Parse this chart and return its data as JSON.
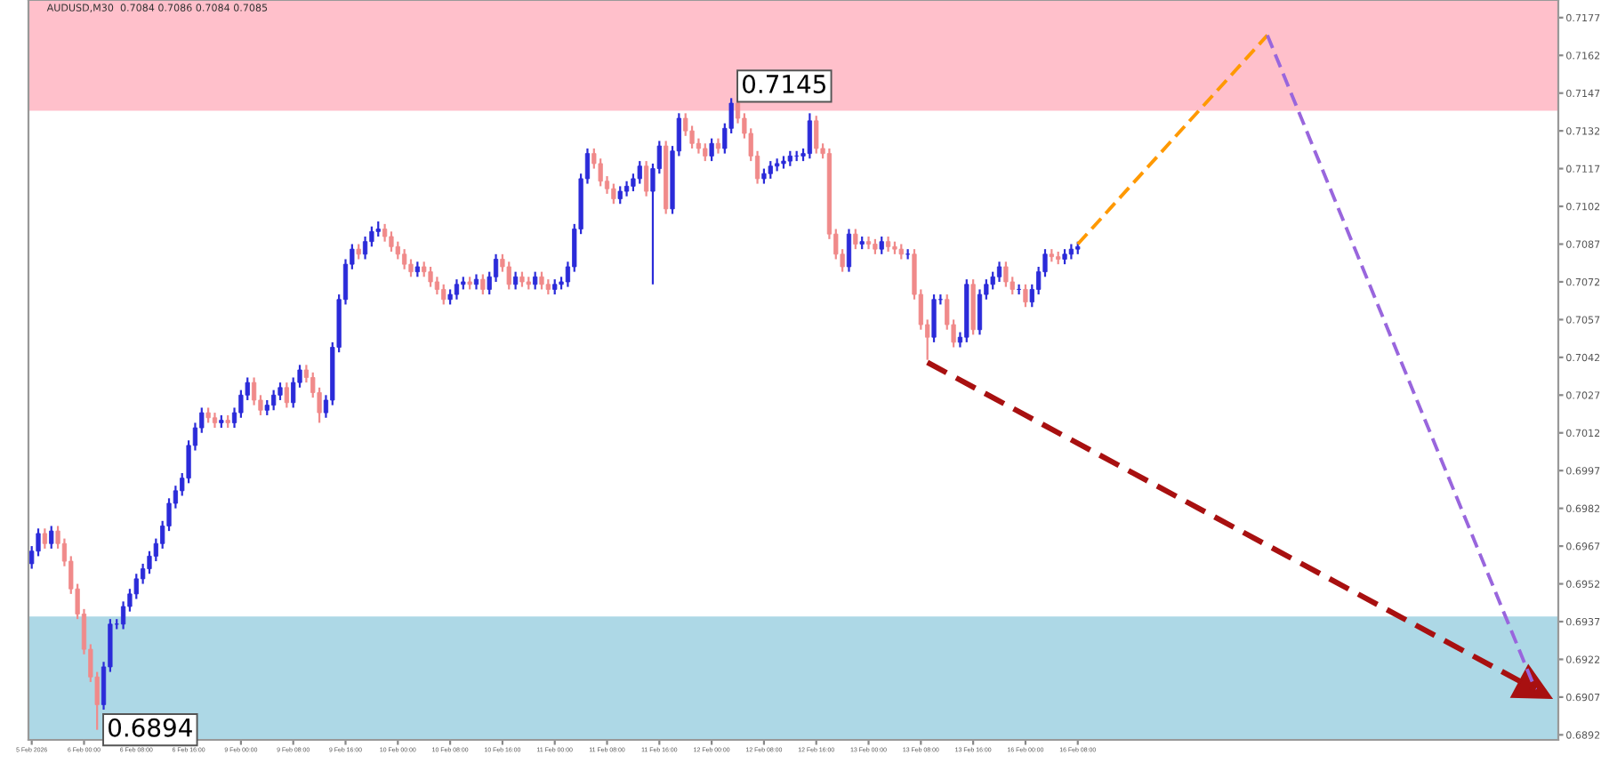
{
  "chart_data": {
    "type": "candlestick",
    "title": "AUDUSD,M30  0.7084 0.7086 0.7084 0.7085",
    "categories": [
      "5 Feb 2026",
      null,
      null,
      null,
      null,
      null,
      null,
      null,
      "6 Feb 00:00",
      null,
      null,
      null,
      null,
      null,
      null,
      null,
      "6 Feb 08:00",
      null,
      null,
      null,
      null,
      null,
      null,
      null,
      "6 Feb 16:00",
      null,
      null,
      null,
      null,
      null,
      null,
      null,
      "9 Feb 00:00",
      null,
      null,
      null,
      null,
      null,
      null,
      null,
      "9 Feb 08:00",
      null,
      null,
      null,
      null,
      null,
      null,
      null,
      "9 Feb 16:00",
      null,
      null,
      null,
      null,
      null,
      null,
      null,
      "10 Feb 00:00",
      null,
      null,
      null,
      null,
      null,
      null,
      null,
      "10 Feb 08:00",
      null,
      null,
      null,
      null,
      null,
      null,
      null,
      "10 Feb 16:00",
      null,
      null,
      null,
      null,
      null,
      null,
      null,
      "11 Feb 00:00",
      null,
      null,
      null,
      null,
      null,
      null,
      null,
      "11 Feb 08:00",
      null,
      null,
      null,
      null,
      null,
      null,
      null,
      "11 Feb 16:00",
      null,
      null,
      null,
      null,
      null,
      null,
      null,
      "12 Feb 00:00",
      null,
      null,
      null,
      null,
      null,
      null,
      null,
      "12 Feb 08:00",
      null,
      null,
      null,
      null,
      null,
      null,
      null,
      "12 Feb 16:00",
      null,
      null,
      null,
      null,
      null,
      null,
      null,
      "13 Feb 00:00",
      null,
      null,
      null,
      null,
      null,
      null,
      null,
      "13 Feb 08:00",
      null,
      null,
      null,
      null,
      null,
      null,
      null,
      "13 Feb 16:00",
      null,
      null,
      null,
      null,
      null,
      null,
      null,
      "16 Feb 00:00",
      null,
      null,
      null,
      null,
      null,
      null,
      null,
      "16 Feb 08:00",
      null,
      null,
      null,
      null,
      null,
      null,
      null,
      null,
      null,
      null,
      null,
      null,
      null,
      null,
      null,
      null,
      null,
      null,
      null,
      null,
      null,
      null,
      null,
      null,
      null,
      null,
      null,
      null,
      null,
      null,
      null,
      null,
      null,
      null,
      null,
      null,
      null,
      null,
      null,
      null,
      null,
      null,
      null,
      null,
      null,
      null,
      null,
      null,
      null,
      null,
      null,
      null,
      null,
      null,
      null,
      null,
      null,
      null,
      null,
      null,
      null,
      null,
      null,
      null,
      null,
      null,
      null,
      null,
      null,
      null,
      null,
      null,
      null
    ],
    "ohlc": [
      [
        0.696,
        0.6967,
        0.6958,
        0.6965
      ],
      [
        0.6965,
        0.6974,
        0.6963,
        0.6972
      ],
      [
        0.6972,
        0.6974,
        0.6966,
        0.6968
      ],
      [
        0.6968,
        0.6975,
        0.6966,
        0.6973
      ],
      [
        0.6973,
        0.6975,
        0.6966,
        0.6968
      ],
      [
        0.6968,
        0.697,
        0.6959,
        0.6961
      ],
      [
        0.6961,
        0.6963,
        0.6948,
        0.695
      ],
      [
        0.695,
        0.6952,
        0.6938,
        0.694
      ],
      [
        0.694,
        0.6942,
        0.6924,
        0.6926
      ],
      [
        0.6926,
        0.6928,
        0.6913,
        0.6915
      ],
      [
        0.6915,
        0.6917,
        0.6894,
        0.6904
      ],
      [
        0.6904,
        0.6921,
        0.6902,
        0.6919
      ],
      [
        0.6919,
        0.6938,
        0.6917,
        0.6936
      ],
      [
        0.6936,
        0.6938,
        0.6934,
        0.6936
      ],
      [
        0.6936,
        0.6945,
        0.6934,
        0.6943
      ],
      [
        0.6943,
        0.695,
        0.6941,
        0.6948
      ],
      [
        0.6948,
        0.6956,
        0.6946,
        0.6954
      ],
      [
        0.6954,
        0.696,
        0.6952,
        0.6958
      ],
      [
        0.6958,
        0.6965,
        0.6956,
        0.6963
      ],
      [
        0.6963,
        0.697,
        0.6961,
        0.6968
      ],
      [
        0.6968,
        0.6977,
        0.6966,
        0.6975
      ],
      [
        0.6975,
        0.6986,
        0.6973,
        0.6984
      ],
      [
        0.6984,
        0.6991,
        0.6982,
        0.6989
      ],
      [
        0.6989,
        0.6996,
        0.6987,
        0.6994
      ],
      [
        0.6994,
        0.7009,
        0.6992,
        0.7007
      ],
      [
        0.7007,
        0.7016,
        0.7005,
        0.7014
      ],
      [
        0.7014,
        0.7022,
        0.7012,
        0.702
      ],
      [
        0.702,
        0.7022,
        0.7016,
        0.7018
      ],
      [
        0.7018,
        0.702,
        0.7014,
        0.7016
      ],
      [
        0.7016,
        0.7019,
        0.7014,
        0.7017
      ],
      [
        0.7017,
        0.7019,
        0.7014,
        0.7016
      ],
      [
        0.7016,
        0.7022,
        0.7014,
        0.702
      ],
      [
        0.702,
        0.7029,
        0.7018,
        0.7027
      ],
      [
        0.7027,
        0.7034,
        0.7025,
        0.7032
      ],
      [
        0.7032,
        0.7034,
        0.7023,
        0.7025
      ],
      [
        0.7025,
        0.7027,
        0.7019,
        0.7021
      ],
      [
        0.7021,
        0.7025,
        0.7019,
        0.7023
      ],
      [
        0.7023,
        0.7029,
        0.7021,
        0.7027
      ],
      [
        0.7027,
        0.7032,
        0.7025,
        0.703
      ],
      [
        0.703,
        0.7032,
        0.7022,
        0.7024
      ],
      [
        0.7024,
        0.7034,
        0.7022,
        0.7032
      ],
      [
        0.7032,
        0.7039,
        0.703,
        0.7037
      ],
      [
        0.7037,
        0.7039,
        0.7032,
        0.7034
      ],
      [
        0.7034,
        0.7036,
        0.7026,
        0.7028
      ],
      [
        0.7028,
        0.703,
        0.7016,
        0.702
      ],
      [
        0.702,
        0.7027,
        0.7018,
        0.7025
      ],
      [
        0.7025,
        0.7048,
        0.7023,
        0.7046
      ],
      [
        0.7046,
        0.7067,
        0.7044,
        0.7065
      ],
      [
        0.7065,
        0.7081,
        0.7063,
        0.7079
      ],
      [
        0.7079,
        0.7087,
        0.7077,
        0.7085
      ],
      [
        0.7085,
        0.7087,
        0.7081,
        0.7083
      ],
      [
        0.7083,
        0.709,
        0.7081,
        0.7088
      ],
      [
        0.7088,
        0.7094,
        0.7086,
        0.7092
      ],
      [
        0.7092,
        0.7096,
        0.709,
        0.7093
      ],
      [
        0.7093,
        0.7095,
        0.7088,
        0.709
      ],
      [
        0.709,
        0.7092,
        0.7084,
        0.7086
      ],
      [
        0.7086,
        0.7088,
        0.7081,
        0.7083
      ],
      [
        0.7083,
        0.7085,
        0.7077,
        0.7079
      ],
      [
        0.7079,
        0.7081,
        0.7074,
        0.7076
      ],
      [
        0.7076,
        0.708,
        0.7074,
        0.7078
      ],
      [
        0.7078,
        0.708,
        0.7074,
        0.7076
      ],
      [
        0.7076,
        0.7078,
        0.707,
        0.7072
      ],
      [
        0.7072,
        0.7074,
        0.7067,
        0.7069
      ],
      [
        0.7069,
        0.7071,
        0.7063,
        0.7065
      ],
      [
        0.7065,
        0.7069,
        0.7063,
        0.7067
      ],
      [
        0.7067,
        0.7073,
        0.7065,
        0.7071
      ],
      [
        0.7071,
        0.7074,
        0.7069,
        0.7072
      ],
      [
        0.7072,
        0.7074,
        0.7069,
        0.7071
      ],
      [
        0.7071,
        0.7075,
        0.7069,
        0.7073
      ],
      [
        0.7073,
        0.7075,
        0.7067,
        0.7069
      ],
      [
        0.7069,
        0.7076,
        0.7067,
        0.7074
      ],
      [
        0.7074,
        0.7083,
        0.7072,
        0.7081
      ],
      [
        0.7081,
        0.7083,
        0.7076,
        0.7078
      ],
      [
        0.7078,
        0.708,
        0.7069,
        0.7071
      ],
      [
        0.7071,
        0.7076,
        0.7069,
        0.7074
      ],
      [
        0.7074,
        0.7076,
        0.707,
        0.7072
      ],
      [
        0.7072,
        0.7074,
        0.7069,
        0.7071
      ],
      [
        0.7071,
        0.7076,
        0.7069,
        0.7074
      ],
      [
        0.7074,
        0.7076,
        0.7069,
        0.7071
      ],
      [
        0.7071,
        0.7073,
        0.7067,
        0.7069
      ],
      [
        0.7069,
        0.7073,
        0.7067,
        0.7071
      ],
      [
        0.7071,
        0.7074,
        0.7069,
        0.7072
      ],
      [
        0.7072,
        0.708,
        0.707,
        0.7078
      ],
      [
        0.7078,
        0.7095,
        0.7076,
        0.7093
      ],
      [
        0.7093,
        0.7115,
        0.7091,
        0.7113
      ],
      [
        0.7113,
        0.7125,
        0.7111,
        0.7123
      ],
      [
        0.7123,
        0.7125,
        0.7117,
        0.7119
      ],
      [
        0.7119,
        0.7121,
        0.711,
        0.7112
      ],
      [
        0.7112,
        0.7114,
        0.7107,
        0.7109
      ],
      [
        0.7109,
        0.7111,
        0.7103,
        0.7105
      ],
      [
        0.7105,
        0.711,
        0.7103,
        0.7108
      ],
      [
        0.7108,
        0.7112,
        0.7106,
        0.711
      ],
      [
        0.711,
        0.7115,
        0.7108,
        0.7113
      ],
      [
        0.7113,
        0.712,
        0.7111,
        0.7118
      ],
      [
        0.7118,
        0.712,
        0.7106,
        0.7108
      ],
      [
        0.7108,
        0.7119,
        0.7071,
        0.7117
      ],
      [
        0.7117,
        0.7128,
        0.7115,
        0.7126
      ],
      [
        0.7126,
        0.7128,
        0.7099,
        0.7101
      ],
      [
        0.7101,
        0.7126,
        0.7099,
        0.7124
      ],
      [
        0.7124,
        0.7139,
        0.7122,
        0.7137
      ],
      [
        0.7137,
        0.7139,
        0.713,
        0.7132
      ],
      [
        0.7132,
        0.7134,
        0.7125,
        0.7127
      ],
      [
        0.7127,
        0.7129,
        0.7123,
        0.7125
      ],
      [
        0.7125,
        0.7127,
        0.712,
        0.7122
      ],
      [
        0.7122,
        0.7129,
        0.712,
        0.7127
      ],
      [
        0.7127,
        0.7129,
        0.7123,
        0.7125
      ],
      [
        0.7125,
        0.7135,
        0.7123,
        0.7133
      ],
      [
        0.7133,
        0.7145,
        0.7131,
        0.7143
      ],
      [
        0.7143,
        0.7144,
        0.7135,
        0.7137
      ],
      [
        0.7137,
        0.7139,
        0.7129,
        0.7131
      ],
      [
        0.7131,
        0.7133,
        0.712,
        0.7122
      ],
      [
        0.7122,
        0.7124,
        0.7111,
        0.7113
      ],
      [
        0.7113,
        0.7117,
        0.7111,
        0.7115
      ],
      [
        0.7115,
        0.712,
        0.7113,
        0.7118
      ],
      [
        0.7118,
        0.7121,
        0.7116,
        0.7119
      ],
      [
        0.7119,
        0.7122,
        0.7117,
        0.712
      ],
      [
        0.712,
        0.7124,
        0.7118,
        0.7122
      ],
      [
        0.7122,
        0.7124,
        0.712,
        0.7122
      ],
      [
        0.7122,
        0.7125,
        0.712,
        0.7123
      ],
      [
        0.7123,
        0.7139,
        0.7121,
        0.7136
      ],
      [
        0.7136,
        0.7138,
        0.7123,
        0.7125
      ],
      [
        0.7125,
        0.7127,
        0.7121,
        0.7123
      ],
      [
        0.7123,
        0.7125,
        0.7089,
        0.7091
      ],
      [
        0.7091,
        0.7093,
        0.7081,
        0.7083
      ],
      [
        0.7083,
        0.7085,
        0.7076,
        0.7078
      ],
      [
        0.7078,
        0.7093,
        0.7076,
        0.7091
      ],
      [
        0.7091,
        0.7093,
        0.7085,
        0.7087
      ],
      [
        0.7087,
        0.709,
        0.7085,
        0.7088
      ],
      [
        0.7088,
        0.709,
        0.7085,
        0.7087
      ],
      [
        0.7087,
        0.7089,
        0.7083,
        0.7085
      ],
      [
        0.7085,
        0.709,
        0.7083,
        0.7088
      ],
      [
        0.7088,
        0.709,
        0.7084,
        0.7086
      ],
      [
        0.7086,
        0.7088,
        0.7083,
        0.7085
      ],
      [
        0.7085,
        0.7087,
        0.7081,
        0.7083
      ],
      [
        0.7083,
        0.7085,
        0.7081,
        0.7083
      ],
      [
        0.7083,
        0.7085,
        0.7065,
        0.7067
      ],
      [
        0.7067,
        0.7069,
        0.7053,
        0.7055
      ],
      [
        0.7055,
        0.7057,
        0.7041,
        0.705
      ],
      [
        0.705,
        0.7067,
        0.7048,
        0.7065
      ],
      [
        0.7065,
        0.7067,
        0.7063,
        0.7065
      ],
      [
        0.7065,
        0.7067,
        0.7053,
        0.7055
      ],
      [
        0.7055,
        0.7057,
        0.7046,
        0.7048
      ],
      [
        0.7048,
        0.7052,
        0.7046,
        0.705
      ],
      [
        0.705,
        0.7073,
        0.7048,
        0.7071
      ],
      [
        0.7071,
        0.7073,
        0.7051,
        0.7053
      ],
      [
        0.7053,
        0.7069,
        0.7051,
        0.7067
      ],
      [
        0.7067,
        0.7073,
        0.7065,
        0.7071
      ],
      [
        0.7071,
        0.7076,
        0.7069,
        0.7074
      ],
      [
        0.7074,
        0.708,
        0.7072,
        0.7078
      ],
      [
        0.7078,
        0.708,
        0.707,
        0.7072
      ],
      [
        0.7072,
        0.7074,
        0.7067,
        0.7069
      ],
      [
        0.7069,
        0.7071,
        0.7067,
        0.7069
      ],
      [
        0.7069,
        0.7071,
        0.7062,
        0.7064
      ],
      [
        0.7064,
        0.7071,
        0.7062,
        0.7069
      ],
      [
        0.7069,
        0.7078,
        0.7067,
        0.7076
      ],
      [
        0.7076,
        0.7085,
        0.7074,
        0.7083
      ],
      [
        0.7083,
        0.7085,
        0.708,
        0.7082
      ],
      [
        0.7082,
        0.7084,
        0.7079,
        0.7081
      ],
      [
        0.7081,
        0.7085,
        0.7079,
        0.7083
      ],
      [
        0.7083,
        0.7087,
        0.7081,
        0.7085
      ],
      [
        0.7085,
        0.7088,
        0.7083,
        0.7086
      ],
      null,
      null,
      null,
      null,
      null,
      null,
      null,
      null,
      null,
      null,
      null,
      null,
      null,
      null,
      null,
      null,
      null,
      null,
      null,
      null,
      null,
      null,
      null,
      null,
      null,
      null,
      null,
      null,
      null,
      null,
      null,
      null,
      null,
      null,
      null,
      null,
      null,
      null,
      null,
      null,
      null,
      null,
      null,
      null,
      null,
      null,
      null,
      null,
      null,
      null,
      null,
      null,
      null,
      null,
      null,
      null,
      null,
      null,
      null,
      null,
      null,
      null,
      null,
      null,
      null,
      null,
      null,
      null,
      null,
      null,
      null,
      null,
      null
    ],
    "series": [
      {
        "type": "line",
        "color": "#ff9900",
        "line_style": "dashed",
        "values": [
          null,
          null,
          null,
          null,
          null,
          null,
          null,
          null,
          null,
          null,
          null,
          null,
          null,
          null,
          null,
          null,
          null,
          null,
          null,
          null,
          null,
          null,
          null,
          null,
          null,
          null,
          null,
          null,
          null,
          null,
          null,
          null,
          null,
          null,
          null,
          null,
          null,
          null,
          null,
          null,
          null,
          null,
          null,
          null,
          null,
          null,
          null,
          null,
          null,
          null,
          null,
          null,
          null,
          null,
          null,
          null,
          null,
          null,
          null,
          null,
          null,
          null,
          null,
          null,
          null,
          null,
          null,
          null,
          null,
          null,
          null,
          null,
          null,
          null,
          null,
          null,
          null,
          null,
          null,
          null,
          null,
          null,
          null,
          null,
          null,
          null,
          null,
          null,
          null,
          null,
          null,
          null,
          null,
          null,
          null,
          null,
          null,
          null,
          null,
          null,
          null,
          null,
          null,
          null,
          null,
          null,
          null,
          null,
          null,
          null,
          null,
          null,
          null,
          null,
          null,
          null,
          null,
          null,
          null,
          null,
          null,
          null,
          null,
          null,
          null,
          null,
          null,
          null,
          null,
          null,
          null,
          null,
          null,
          null,
          null,
          null,
          null,
          null,
          null,
          null,
          null,
          null,
          null,
          null,
          null,
          null,
          null,
          null,
          null,
          null,
          null,
          null,
          null,
          null,
          null,
          null,
          null,
          null,
          null,
          null,
          0.7087,
          null,
          null,
          null,
          null,
          null,
          null,
          null,
          null,
          null,
          null,
          null,
          null,
          null,
          null,
          null,
          null,
          null,
          null,
          null,
          null,
          null,
          null,
          null,
          null,
          null,
          null,
          null,
          null,
          0.717,
          null,
          null,
          null,
          null,
          null,
          null,
          null,
          null,
          null,
          null,
          null,
          null,
          null,
          null,
          null,
          null,
          null,
          null,
          null,
          null,
          null,
          null,
          null,
          null,
          null,
          null,
          null,
          null,
          null,
          null,
          null,
          null,
          null,
          null,
          null,
          null,
          null,
          null,
          null,
          null,
          null,
          null,
          null,
          null
        ]
      },
      {
        "type": "line",
        "color": "#9966dd",
        "line_style": "dashed",
        "values": [
          null,
          null,
          null,
          null,
          null,
          null,
          null,
          null,
          null,
          null,
          null,
          null,
          null,
          null,
          null,
          null,
          null,
          null,
          null,
          null,
          null,
          null,
          null,
          null,
          null,
          null,
          null,
          null,
          null,
          null,
          null,
          null,
          null,
          null,
          null,
          null,
          null,
          null,
          null,
          null,
          null,
          null,
          null,
          null,
          null,
          null,
          null,
          null,
          null,
          null,
          null,
          null,
          null,
          null,
          null,
          null,
          null,
          null,
          null,
          null,
          null,
          null,
          null,
          null,
          null,
          null,
          null,
          null,
          null,
          null,
          null,
          null,
          null,
          null,
          null,
          null,
          null,
          null,
          null,
          null,
          null,
          null,
          null,
          null,
          null,
          null,
          null,
          null,
          null,
          null,
          null,
          null,
          null,
          null,
          null,
          null,
          null,
          null,
          null,
          null,
          null,
          null,
          null,
          null,
          null,
          null,
          null,
          null,
          null,
          null,
          null,
          null,
          null,
          null,
          null,
          null,
          null,
          null,
          null,
          null,
          null,
          null,
          null,
          null,
          null,
          null,
          null,
          null,
          null,
          null,
          null,
          null,
          null,
          null,
          null,
          null,
          null,
          null,
          null,
          null,
          null,
          null,
          null,
          null,
          null,
          null,
          null,
          null,
          null,
          null,
          null,
          null,
          null,
          null,
          null,
          null,
          null,
          null,
          null,
          null,
          null,
          null,
          null,
          null,
          null,
          null,
          null,
          null,
          null,
          null,
          null,
          null,
          null,
          null,
          null,
          null,
          null,
          null,
          null,
          null,
          null,
          null,
          null,
          null,
          null,
          null,
          null,
          null,
          null,
          0.717,
          null,
          null,
          null,
          null,
          null,
          null,
          null,
          null,
          null,
          null,
          null,
          null,
          null,
          null,
          null,
          null,
          null,
          null,
          null,
          null,
          null,
          null,
          null,
          null,
          null,
          null,
          null,
          null,
          null,
          null,
          null,
          null,
          null,
          null,
          null,
          null,
          null,
          null,
          null,
          null,
          0.691,
          null,
          null,
          null
        ]
      },
      {
        "type": "line",
        "color": "#a81010",
        "line_style": "dashed",
        "marker": "triangle",
        "values": [
          null,
          null,
          null,
          null,
          null,
          null,
          null,
          null,
          null,
          null,
          null,
          null,
          null,
          null,
          null,
          null,
          null,
          null,
          null,
          null,
          null,
          null,
          null,
          null,
          null,
          null,
          null,
          null,
          null,
          null,
          null,
          null,
          null,
          null,
          null,
          null,
          null,
          null,
          null,
          null,
          null,
          null,
          null,
          null,
          null,
          null,
          null,
          null,
          null,
          null,
          null,
          null,
          null,
          null,
          null,
          null,
          null,
          null,
          null,
          null,
          null,
          null,
          null,
          null,
          null,
          null,
          null,
          null,
          null,
          null,
          null,
          null,
          null,
          null,
          null,
          null,
          null,
          null,
          null,
          null,
          null,
          null,
          null,
          null,
          null,
          null,
          null,
          null,
          null,
          null,
          null,
          null,
          null,
          null,
          null,
          null,
          null,
          null,
          null,
          null,
          null,
          null,
          null,
          null,
          null,
          null,
          null,
          null,
          null,
          null,
          null,
          null,
          null,
          null,
          null,
          null,
          null,
          null,
          null,
          null,
          null,
          null,
          null,
          null,
          null,
          null,
          null,
          null,
          null,
          null,
          null,
          null,
          null,
          null,
          null,
          null,
          null,
          0.704,
          null,
          null,
          null,
          null,
          null,
          null,
          null,
          null,
          null,
          null,
          null,
          null,
          null,
          null,
          null,
          null,
          null,
          null,
          null,
          null,
          null,
          null,
          null,
          null,
          null,
          null,
          null,
          null,
          null,
          null,
          null,
          null,
          null,
          null,
          null,
          null,
          null,
          null,
          null,
          null,
          null,
          null,
          null,
          null,
          null,
          null,
          null,
          null,
          null,
          null,
          null,
          null,
          null,
          null,
          null,
          null,
          null,
          null,
          null,
          null,
          null,
          null,
          null,
          null,
          null,
          null,
          null,
          null,
          null,
          null,
          null,
          null,
          null,
          null,
          null,
          null,
          null,
          null,
          null,
          null,
          null,
          null,
          null,
          null,
          null,
          null,
          null,
          null,
          null,
          null,
          null,
          null,
          0.691,
          null,
          null,
          null
        ]
      }
    ],
    "ylim": [
      0.689,
      0.7184
    ],
    "yticks": [
      0.6892,
      0.6907,
      0.6922,
      0.6937,
      0.6952,
      0.6967,
      0.6982,
      0.6997,
      0.7012,
      0.7027,
      0.7042,
      0.7057,
      0.7072,
      0.7087,
      0.7102,
      0.7117,
      0.7132,
      0.7147,
      0.7162,
      0.7177
    ],
    "bands": [
      {
        "axis": "y",
        "from": 0.714,
        "to": 0.7184,
        "color": "#ffc0cb"
      },
      {
        "axis": "y",
        "from": 0.689,
        "to": 0.6939,
        "color": "#add8e6"
      }
    ],
    "annotations": [
      "0.7145",
      "0.6894"
    ],
    "grid": false,
    "legend": false
  }
}
